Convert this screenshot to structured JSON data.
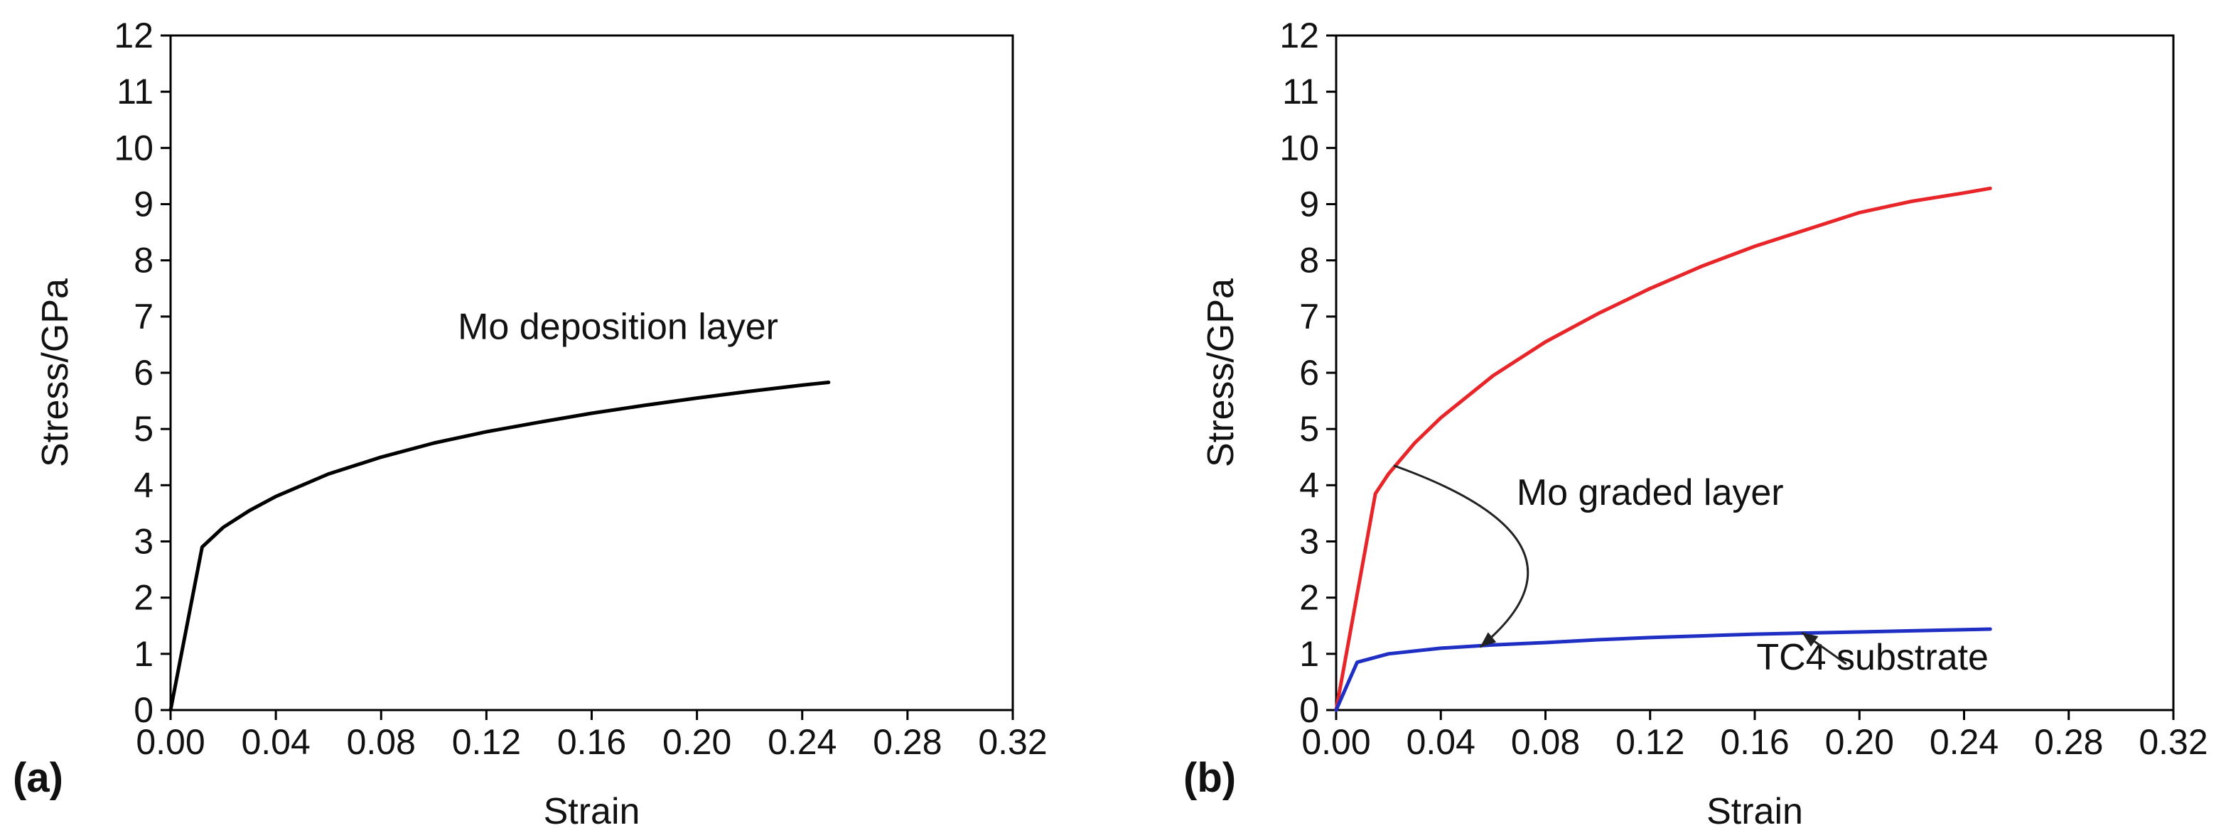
{
  "chart_data": [
    {
      "type": "line",
      "panel_label": "(a)",
      "title": "",
      "xlabel": "Strain",
      "ylabel": "Stress/GPa",
      "xlim": [
        0,
        0.32
      ],
      "ylim": [
        0,
        12
      ],
      "x_ticks": [
        "0.00",
        "0.04",
        "0.08",
        "0.12",
        "0.16",
        "0.20",
        "0.24",
        "0.28",
        "0.32"
      ],
      "y_ticks": [
        "0",
        "1",
        "2",
        "3",
        "4",
        "5",
        "6",
        "7",
        "8",
        "9",
        "10",
        "11",
        "12"
      ],
      "grid": false,
      "series": [
        {
          "name": "Mo deposition layer",
          "color": "#000000",
          "x": [
            0,
            0.012,
            0.02,
            0.03,
            0.04,
            0.06,
            0.08,
            0.1,
            0.12,
            0.14,
            0.16,
            0.18,
            0.2,
            0.22,
            0.24,
            0.25
          ],
          "y": [
            0,
            2.9,
            3.25,
            3.55,
            3.8,
            4.2,
            4.5,
            4.75,
            4.95,
            5.12,
            5.28,
            5.42,
            5.55,
            5.67,
            5.78,
            5.83
          ]
        }
      ],
      "annotations": [
        {
          "text": "Mo deposition layer",
          "x": 0.17,
          "y": 6.6
        }
      ]
    },
    {
      "type": "line",
      "panel_label": "(b)",
      "title": "",
      "xlabel": "Strain",
      "ylabel": "Stress/GPa",
      "xlim": [
        0,
        0.32
      ],
      "ylim": [
        0,
        12
      ],
      "x_ticks": [
        "0.00",
        "0.04",
        "0.08",
        "0.12",
        "0.16",
        "0.20",
        "0.24",
        "0.28",
        "0.32"
      ],
      "y_ticks": [
        "0",
        "1",
        "2",
        "3",
        "4",
        "5",
        "6",
        "7",
        "8",
        "9",
        "10",
        "11",
        "12"
      ],
      "grid": false,
      "series": [
        {
          "name": "Mo graded layer",
          "color": "#e8262a",
          "x": [
            0,
            0.015,
            0.02,
            0.03,
            0.04,
            0.06,
            0.08,
            0.1,
            0.12,
            0.14,
            0.16,
            0.18,
            0.2,
            0.22,
            0.24,
            0.25
          ],
          "y": [
            0,
            3.85,
            4.2,
            4.75,
            5.2,
            5.95,
            6.55,
            7.05,
            7.5,
            7.9,
            8.25,
            8.55,
            8.85,
            9.05,
            9.2,
            9.28
          ]
        },
        {
          "name": "TC4 substrate",
          "color": "#1f2fc4",
          "x": [
            0,
            0.008,
            0.02,
            0.04,
            0.06,
            0.08,
            0.1,
            0.12,
            0.14,
            0.16,
            0.18,
            0.2,
            0.22,
            0.25
          ],
          "y": [
            0,
            0.85,
            1.0,
            1.1,
            1.16,
            1.2,
            1.25,
            1.29,
            1.32,
            1.35,
            1.37,
            1.39,
            1.41,
            1.44
          ]
        }
      ],
      "annotations": [
        {
          "text": "Mo graded layer",
          "x": 0.12,
          "y": 3.65,
          "arrow_from": [
            0.022,
            4.35
          ],
          "arrow_to": [
            0.055,
            1.12
          ]
        },
        {
          "text": "TC4 substrate",
          "x": 0.205,
          "y": 0.72,
          "arrow_from": [
            0.195,
            0.82
          ],
          "arrow_to": [
            0.178,
            1.38
          ]
        }
      ]
    }
  ]
}
